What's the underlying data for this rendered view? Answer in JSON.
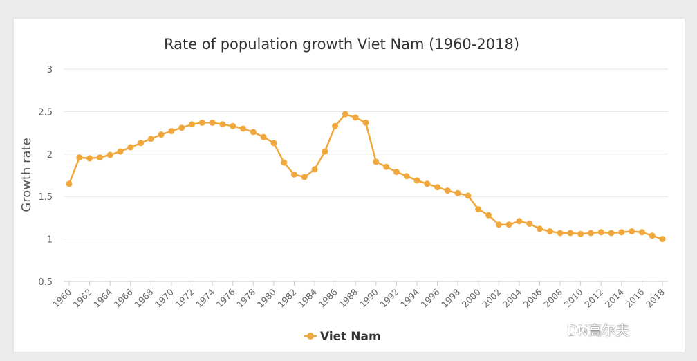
{
  "chart_data": {
    "type": "line",
    "title": "Rate of population growth Viet Nam (1960-2018)",
    "ylabel": "Growth rate",
    "xlabel": "",
    "ylim": [
      0.5,
      3
    ],
    "yticks": [
      "0.5",
      "1",
      "1.5",
      "2",
      "2.5",
      "3"
    ],
    "xlim": [
      1960,
      2018
    ],
    "xticks": [
      "1960",
      "1962",
      "1964",
      "1966",
      "1968",
      "1970",
      "1972",
      "1974",
      "1976",
      "1978",
      "1980",
      "1982",
      "1984",
      "1986",
      "1988",
      "1990",
      "1992",
      "1994",
      "1996",
      "1998",
      "2000",
      "2002",
      "2004",
      "2006",
      "2008",
      "2010",
      "2012",
      "2014",
      "2016",
      "2018"
    ],
    "grid": true,
    "legend": "bottom-center",
    "series": [
      {
        "name": "Viet Nam",
        "color": "#f0a83c",
        "x": [
          1960,
          1961,
          1962,
          1963,
          1964,
          1965,
          1966,
          1967,
          1968,
          1969,
          1970,
          1971,
          1972,
          1973,
          1974,
          1975,
          1976,
          1977,
          1978,
          1979,
          1980,
          1981,
          1982,
          1983,
          1984,
          1985,
          1986,
          1987,
          1988,
          1989,
          1990,
          1991,
          1992,
          1993,
          1994,
          1995,
          1996,
          1997,
          1998,
          1999,
          2000,
          2001,
          2002,
          2003,
          2004,
          2005,
          2006,
          2007,
          2008,
          2009,
          2010,
          2011,
          2012,
          2013,
          2014,
          2015,
          2016,
          2017,
          2018
        ],
        "values": [
          1.65,
          1.96,
          1.95,
          1.96,
          1.99,
          2.03,
          2.08,
          2.13,
          2.18,
          2.23,
          2.27,
          2.31,
          2.35,
          2.37,
          2.37,
          2.35,
          2.33,
          2.3,
          2.26,
          2.2,
          2.13,
          1.9,
          1.76,
          1.73,
          1.82,
          2.03,
          2.33,
          2.47,
          2.43,
          2.37,
          1.91,
          1.85,
          1.79,
          1.74,
          1.69,
          1.65,
          1.61,
          1.57,
          1.54,
          1.51,
          1.35,
          1.28,
          1.17,
          1.17,
          1.21,
          1.18,
          1.12,
          1.09,
          1.07,
          1.07,
          1.06,
          1.07,
          1.08,
          1.07,
          1.08,
          1.09,
          1.08,
          1.04,
          1.0
        ]
      }
    ]
  },
  "watermark": {
    "text": "DN高尔夫",
    "icon": "wechat-icon"
  }
}
